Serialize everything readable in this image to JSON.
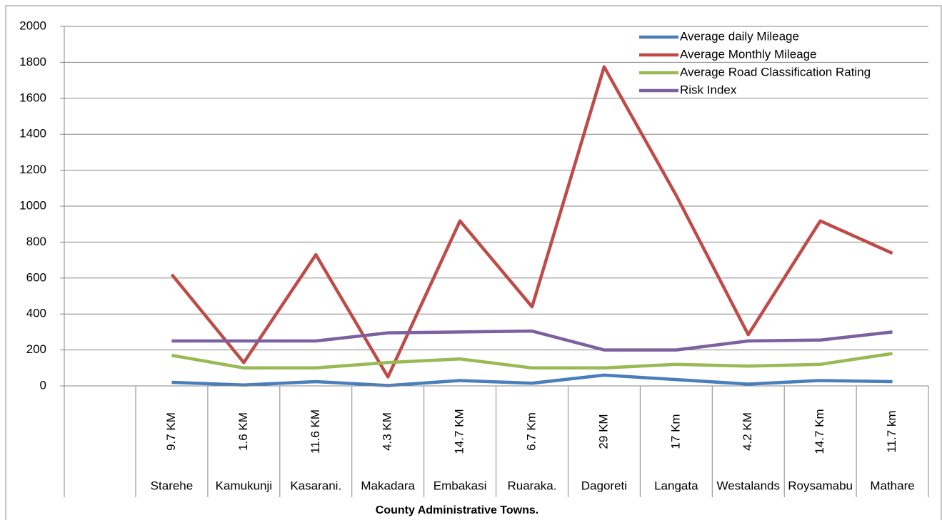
{
  "chart_data": {
    "type": "line",
    "x_label": "County Administrative Towns.",
    "categories": [
      null,
      "9.7 KM",
      "1.6 KM",
      "11.6 KM",
      "4.3 KM",
      "14.7 KM",
      "6.7 Km",
      "29 KM",
      "17 Km",
      "4.2 KM",
      "14.7 Km",
      "11.7 km"
    ],
    "category_groups": [
      null,
      "Starehe",
      "Kamukunji",
      "Kasarani.",
      "Makadara",
      "Embakasi",
      "Ruaraka.",
      "Dagoreti",
      "Langata",
      "Westalands",
      "Roysamabu",
      "Mathare"
    ],
    "series": [
      {
        "name": "Average daily Mileage",
        "color": "#4a7ebb",
        "values": [
          null,
          20,
          5,
          24,
          2,
          30,
          15,
          60,
          35,
          10,
          30,
          24
        ]
      },
      {
        "name": "Average Monthly  Mileage",
        "color": "#be4b48",
        "values": [
          null,
          620,
          130,
          730,
          50,
          918,
          440,
          1775,
          1060,
          285,
          918,
          738
        ]
      },
      {
        "name": "Average Road Classification Rating",
        "color": "#98b954",
        "values": [
          null,
          170,
          100,
          100,
          130,
          150,
          100,
          100,
          120,
          110,
          120,
          180
        ]
      },
      {
        "name": "Risk Index",
        "color": "#7d60a0",
        "values": [
          null,
          250,
          250,
          250,
          295,
          300,
          305,
          200,
          200,
          250,
          255,
          300
        ]
      }
    ],
    "ylim": [
      0,
      2000
    ],
    "yticks": [
      0,
      200,
      400,
      600,
      800,
      1000,
      1200,
      1400,
      1600,
      1800,
      2000
    ],
    "grid": true,
    "legend": "top-right"
  }
}
